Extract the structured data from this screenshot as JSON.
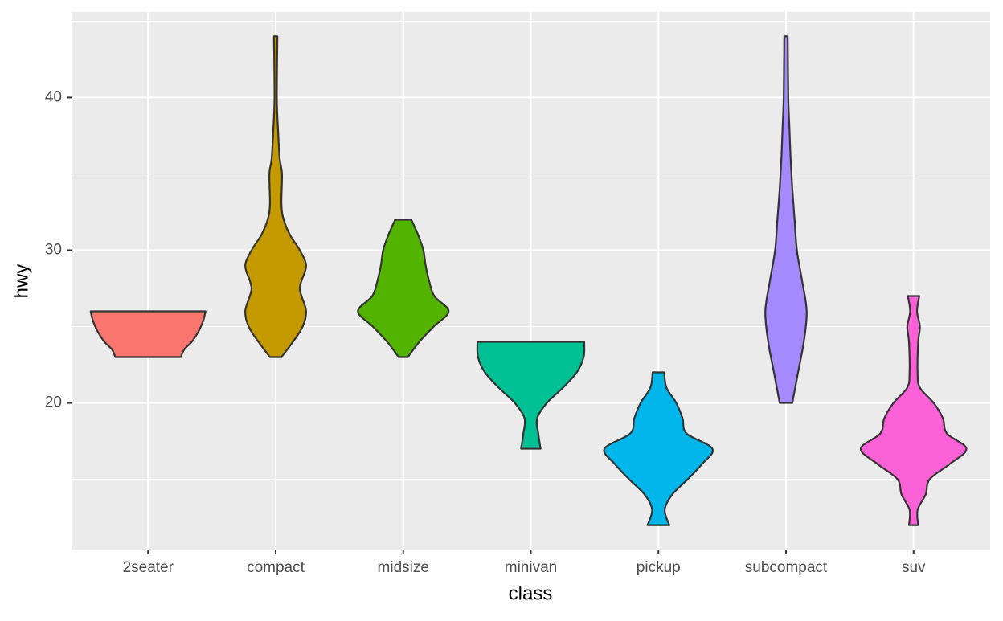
{
  "chart_data": {
    "type": "violin",
    "x_label": "class",
    "y_label": "hwy",
    "categories": [
      "2seater",
      "compact",
      "midsize",
      "minivan",
      "pickup",
      "subcompact",
      "suv"
    ],
    "colors": [
      "#F8766D",
      "#C49A00",
      "#53B400",
      "#00C094",
      "#00B6EB",
      "#A58AFF",
      "#FB61D7"
    ],
    "violins": [
      {
        "y": [
          23,
          23.5,
          24,
          24.5,
          25,
          25.5,
          26
        ],
        "width": [
          0.57,
          0.63,
          0.76,
          0.85,
          0.92,
          0.97,
          1.0
        ]
      },
      {
        "y": [
          23,
          24,
          25,
          26,
          27,
          27.5,
          28,
          29,
          30,
          31,
          32,
          33,
          35,
          36,
          38,
          40,
          44
        ],
        "width": [
          0.1,
          0.3,
          0.47,
          0.53,
          0.45,
          0.42,
          0.45,
          0.53,
          0.42,
          0.25,
          0.14,
          0.1,
          0.11,
          0.07,
          0.04,
          0.02,
          0.03
        ]
      },
      {
        "y": [
          23,
          24,
          25,
          26,
          27,
          28,
          29,
          30,
          31,
          32
        ],
        "width": [
          0.08,
          0.28,
          0.53,
          0.79,
          0.54,
          0.45,
          0.39,
          0.35,
          0.26,
          0.14
        ]
      },
      {
        "y": [
          17,
          18,
          19,
          20,
          21,
          22,
          23,
          24
        ],
        "width": [
          0.17,
          0.13,
          0.11,
          0.28,
          0.56,
          0.8,
          0.92,
          0.93
        ]
      },
      {
        "y": [
          12,
          13,
          14,
          15,
          16,
          17,
          18,
          19,
          20,
          21,
          22
        ],
        "width": [
          0.19,
          0.11,
          0.24,
          0.51,
          0.76,
          0.94,
          0.49,
          0.42,
          0.31,
          0.14,
          0.1
        ]
      },
      {
        "y": [
          20,
          22,
          24,
          26,
          28,
          30,
          32,
          34,
          36,
          38,
          40,
          44
        ],
        "width": [
          0.11,
          0.21,
          0.31,
          0.36,
          0.28,
          0.19,
          0.15,
          0.11,
          0.08,
          0.06,
          0.04,
          0.03
        ]
      },
      {
        "y": [
          12,
          13,
          14,
          15,
          16,
          17,
          18,
          19,
          20,
          21,
          22,
          24,
          25,
          26,
          27
        ],
        "width": [
          0.08,
          0.07,
          0.21,
          0.28,
          0.63,
          0.92,
          0.58,
          0.51,
          0.35,
          0.11,
          0.07,
          0.08,
          0.11,
          0.06,
          0.1
        ]
      }
    ],
    "ylim": [
      10.4,
      45.6
    ],
    "yticks": [
      20,
      30,
      40
    ],
    "minor_yticks": [
      15,
      25,
      35,
      45
    ],
    "grid": true
  }
}
